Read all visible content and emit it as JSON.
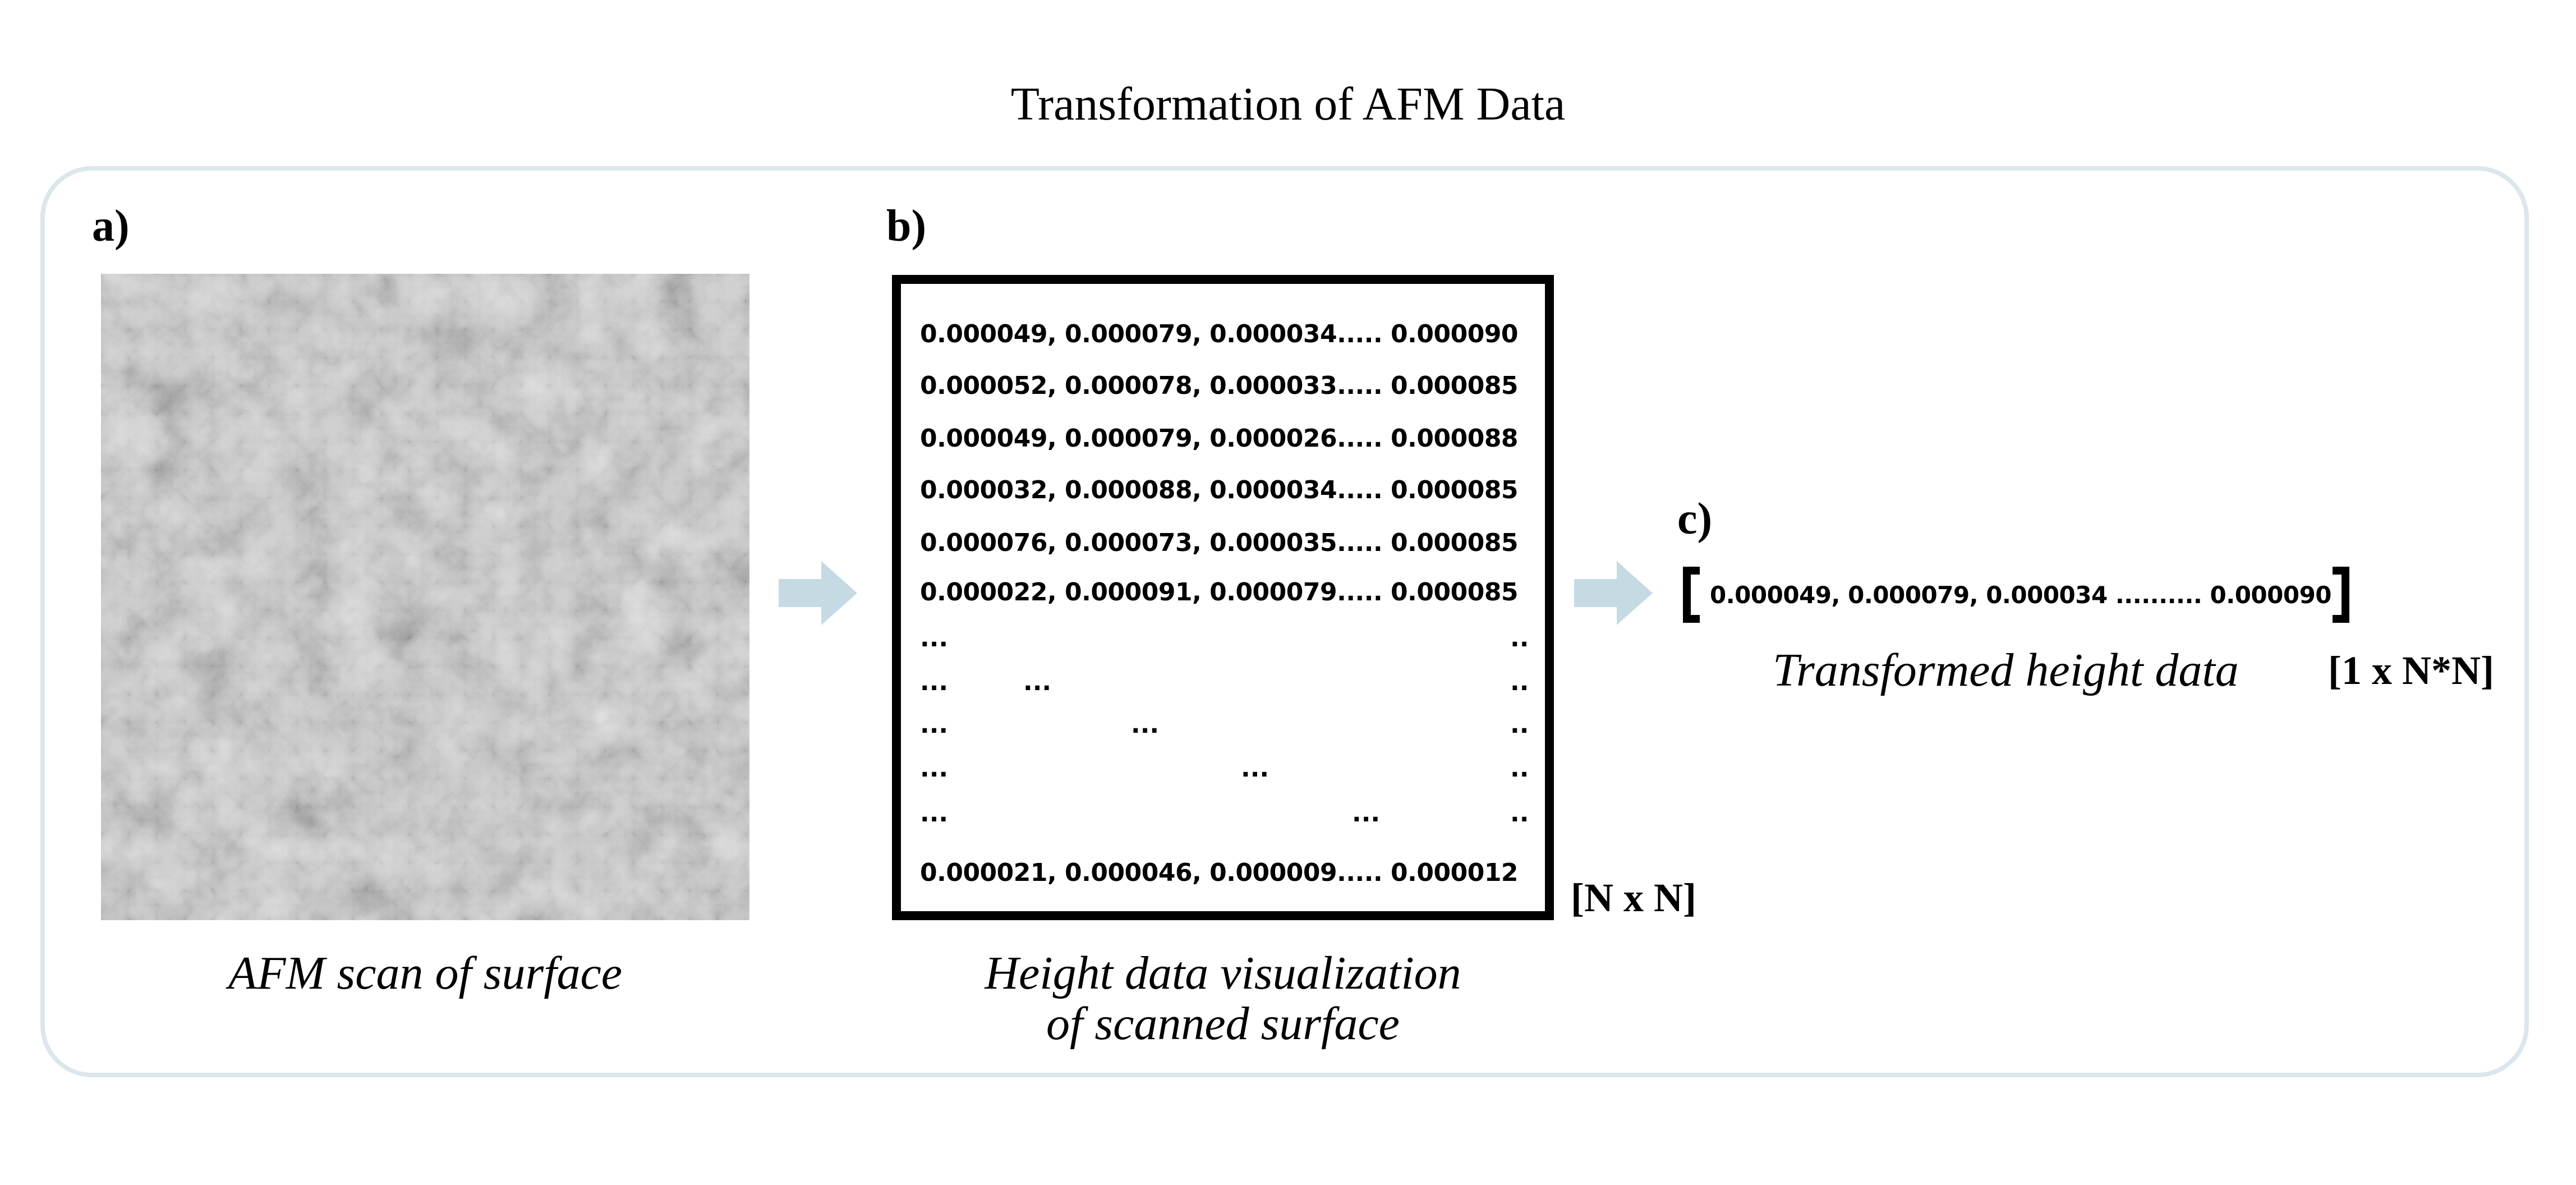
{
  "title": "Transformation of AFM Data",
  "panels": {
    "a": {
      "label": "a)",
      "caption": "AFM scan of surface"
    },
    "b": {
      "label": "b)",
      "rows": [
        "0.000049, 0.000079, 0.000034..... 0.000090",
        "0.000052, 0.000078, 0.000033..... 0.000085",
        "0.000049, 0.000079, 0.000026..... 0.000088",
        "0.000032, 0.000088, 0.000034..... 0.000085",
        "0.000076, 0.000073, 0.000035..... 0.000085",
        "0.000022, 0.000091, 0.000079..... 0.000085"
      ],
      "last_row": "0.000021, 0.000046, 0.000009..... 0.000012",
      "ellipsis": "...",
      "ellipsis_right": "..",
      "dimension": "[N x N]",
      "caption_line1": "Height data visualization",
      "caption_line2": "of scanned surface"
    },
    "c": {
      "label": "c)",
      "vector_text": "0.000049, 0.000079, 0.000034  ..........   0.000090",
      "caption": "Transformed height data",
      "dimension": "[1 x N*N]"
    }
  },
  "colors": {
    "frame": "#dbe7ec",
    "arrow": "#c5dae3"
  },
  "icons": {
    "arrow": "right-arrow-icon"
  }
}
